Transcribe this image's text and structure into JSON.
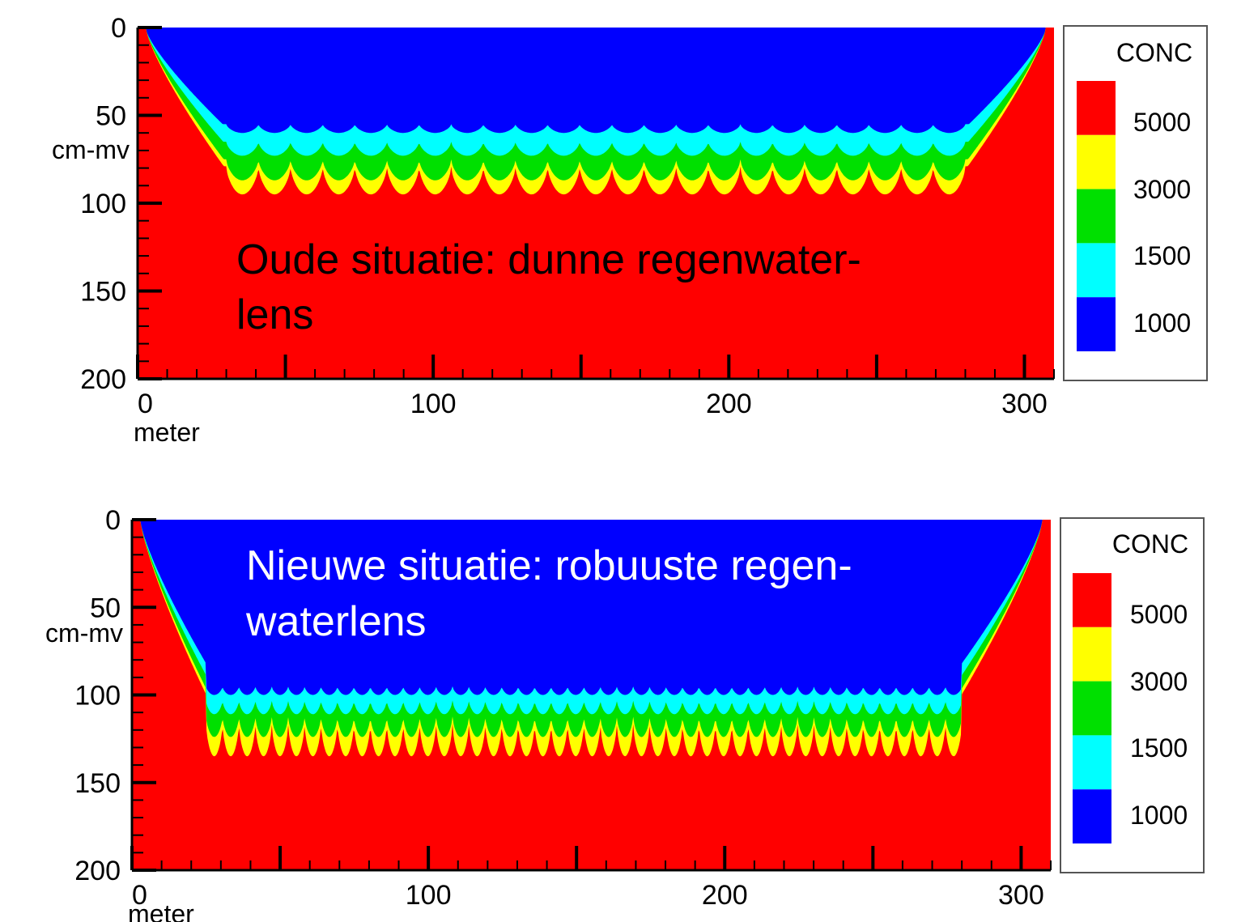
{
  "colors": {
    "c1000": "#0000ff",
    "c1500": "#00ffff",
    "c3000": "#00e000",
    "c5000": "#ffff00",
    "cmax": "#ff0000"
  },
  "chart_data": [
    {
      "type": "heatmap",
      "annotation": [
        "Oude situatie: dunne regenwater-",
        "lens"
      ],
      "annotation_color": "#000000",
      "xlabel": "meter",
      "ylabel": "cm-mv",
      "xlim": [
        0,
        310
      ],
      "ylim": [
        0,
        200
      ],
      "y_inverted": true,
      "x_ticks": [
        "0",
        "100",
        "200",
        "300"
      ],
      "y_ticks": [
        "0",
        "50",
        "100",
        "150",
        "200"
      ],
      "legend": {
        "title": "CONC",
        "levels": [
          "5000",
          "3000",
          "1500",
          "1000"
        ]
      },
      "contours": {
        "lens_x_range": [
          30,
          280
        ],
        "lobes": 23,
        "isoline_1000_depth_cm": 55,
        "isoline_1500_depth_cm": 65,
        "isoline_3000_depth_cm": 75,
        "isoline_5000_lobe_tip_depth_cm": 95,
        "edge_depth_cm": 55
      }
    },
    {
      "type": "heatmap",
      "annotation": [
        "Nieuwe situatie: robuuste regen-",
        "waterlens"
      ],
      "annotation_color": "#ffffff",
      "xlabel": "meter",
      "ylabel": "cm-mv",
      "xlim": [
        0,
        310
      ],
      "ylim": [
        0,
        200
      ],
      "y_inverted": true,
      "x_ticks": [
        "0",
        "100",
        "200",
        "300"
      ],
      "y_ticks": [
        "0",
        "50",
        "100",
        "150",
        "200"
      ],
      "legend": {
        "title": "CONC",
        "levels": [
          "5000",
          "3000",
          "1500",
          "1000"
        ]
      },
      "contours": {
        "lens_x_range": [
          25,
          280
        ],
        "lobes": 46,
        "isoline_1000_depth_cm": 95,
        "isoline_1500_depth_cm": 103,
        "isoline_3000_depth_cm": 112,
        "isoline_5000_lobe_tip_depth_cm": 135,
        "edge_depth_cm": 80
      }
    }
  ]
}
